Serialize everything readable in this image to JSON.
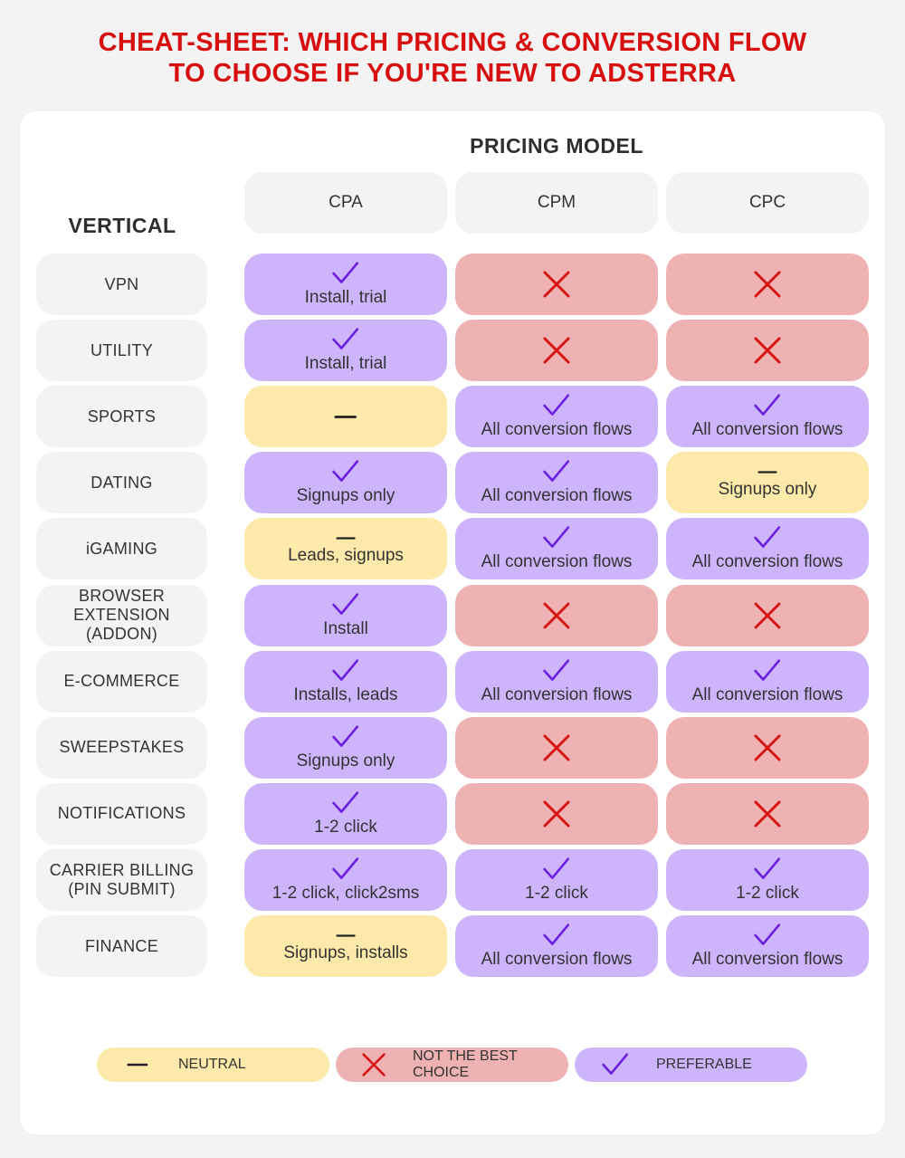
{
  "title": {
    "line1": "CHEAT-SHEET: WHICH PRICING & CONVERSION FLOW",
    "line2": "TO CHOOSE IF YOU'RE NEW TO ADSTERRA"
  },
  "header": {
    "pricing_model": "PRICING MODEL",
    "vertical": "VERTICAL",
    "columns": [
      "CPA",
      "CPM",
      "CPC"
    ]
  },
  "colors": {
    "title": "#d80f0f",
    "preferable": "#cdb4fb",
    "neutral": "#fde9a9",
    "not_best": "#efb2b3",
    "check": "#6a1fe0",
    "cross": "#d71414"
  },
  "rows": [
    {
      "label": "VPN",
      "cells": [
        {
          "status": "preferable",
          "text": "Install, trial"
        },
        {
          "status": "not_best",
          "text": ""
        },
        {
          "status": "not_best",
          "text": ""
        }
      ]
    },
    {
      "label": "UTILITY",
      "cells": [
        {
          "status": "preferable",
          "text": "Install, trial"
        },
        {
          "status": "not_best",
          "text": ""
        },
        {
          "status": "not_best",
          "text": ""
        }
      ]
    },
    {
      "label": "SPORTS",
      "cells": [
        {
          "status": "neutral",
          "text": ""
        },
        {
          "status": "preferable",
          "text": "All conversion flows"
        },
        {
          "status": "preferable",
          "text": "All conversion flows"
        }
      ]
    },
    {
      "label": "DATING",
      "cells": [
        {
          "status": "preferable",
          "text": "Signups only"
        },
        {
          "status": "preferable",
          "text": "All conversion flows"
        },
        {
          "status": "neutral",
          "text": "Signups only"
        }
      ]
    },
    {
      "label": "iGAMING",
      "cells": [
        {
          "status": "neutral",
          "text": "Leads, signups"
        },
        {
          "status": "preferable",
          "text": "All conversion flows"
        },
        {
          "status": "preferable",
          "text": "All conversion flows"
        }
      ]
    },
    {
      "label": "BROWSER EXTENSION (ADDON)",
      "cells": [
        {
          "status": "preferable",
          "text": "Install"
        },
        {
          "status": "not_best",
          "text": ""
        },
        {
          "status": "not_best",
          "text": ""
        }
      ]
    },
    {
      "label": "E-COMMERCE",
      "cells": [
        {
          "status": "preferable",
          "text": "Installs, leads"
        },
        {
          "status": "preferable",
          "text": "All conversion flows"
        },
        {
          "status": "preferable",
          "text": "All conversion flows"
        }
      ]
    },
    {
      "label": "SWEEPSTAKES",
      "cells": [
        {
          "status": "preferable",
          "text": "Signups only"
        },
        {
          "status": "not_best",
          "text": ""
        },
        {
          "status": "not_best",
          "text": ""
        }
      ]
    },
    {
      "label": "NOTIFICATIONS",
      "cells": [
        {
          "status": "preferable",
          "text": "1-2 click"
        },
        {
          "status": "not_best",
          "text": ""
        },
        {
          "status": "not_best",
          "text": ""
        }
      ]
    },
    {
      "label": "CARRIER BILLING (PIN SUBMIT)",
      "cells": [
        {
          "status": "preferable",
          "text": "1-2 click, click2sms"
        },
        {
          "status": "preferable",
          "text": "1-2 click"
        },
        {
          "status": "preferable",
          "text": "1-2 click"
        }
      ]
    },
    {
      "label": "FINANCE",
      "cells": [
        {
          "status": "neutral",
          "text": "Signups, installs"
        },
        {
          "status": "preferable",
          "text": "All conversion flows"
        },
        {
          "status": "preferable",
          "text": "All conversion flows"
        }
      ]
    }
  ],
  "legend": [
    {
      "status": "neutral",
      "label": "NEUTRAL",
      "icon": "dash-icon"
    },
    {
      "status": "not_best",
      "label": "NOT THE BEST CHOICE",
      "icon": "cross-icon"
    },
    {
      "status": "preferable",
      "label": "PREFERABLE",
      "icon": "check-icon"
    }
  ]
}
